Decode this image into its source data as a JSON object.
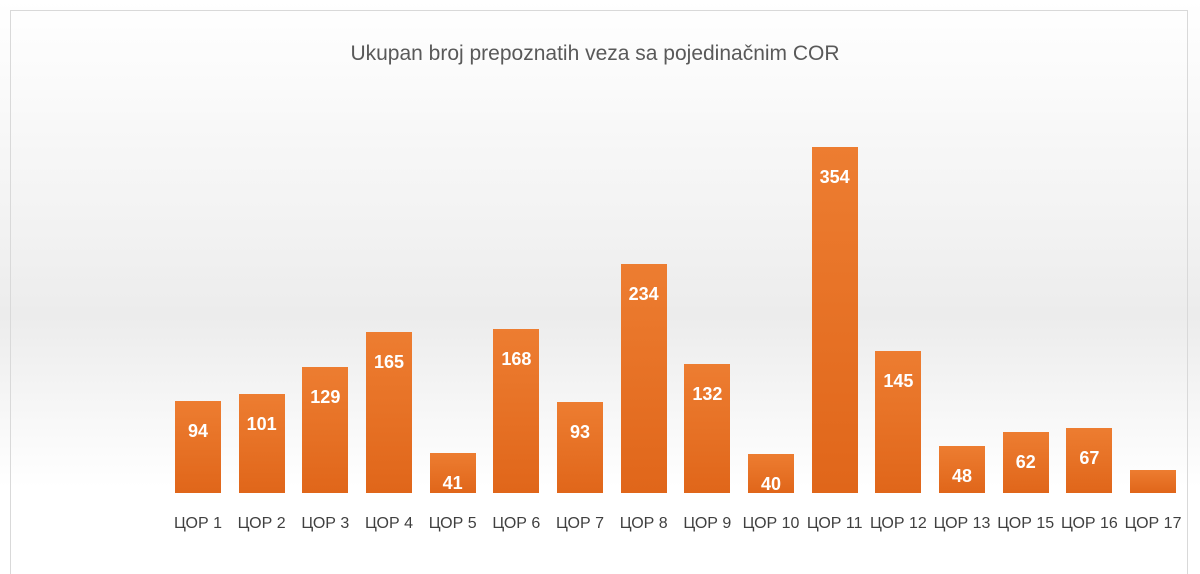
{
  "chart_data": {
    "type": "bar",
    "title": "Ukupan broj prepoznatih veza sa pojedinačnim COR",
    "categories": [
      "ЦОР 1",
      "ЦОР 2",
      "ЦОР 3",
      "ЦОР 4",
      "ЦОР 5",
      "ЦОР 6",
      "ЦОР 7",
      "ЦОР 8",
      "ЦОР 9",
      "ЦОР 10",
      "ЦОР 11",
      "ЦОР 12",
      "ЦОР 13",
      "ЦОР 15",
      "ЦОР 16",
      "ЦОР 17"
    ],
    "values": [
      94,
      101,
      129,
      165,
      41,
      168,
      93,
      234,
      132,
      40,
      354,
      145,
      48,
      62,
      67,
      24
    ],
    "color": "#ed7d31"
  }
}
